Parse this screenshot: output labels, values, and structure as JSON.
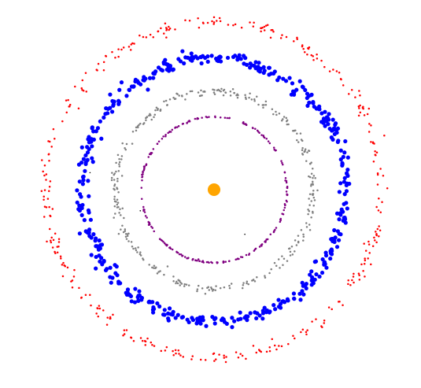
{
  "chart_data": {
    "type": "scatter",
    "title": "",
    "xlabel": "",
    "ylabel": "",
    "axes_visible": false,
    "grid": false,
    "legend": "none",
    "aspect": "equal",
    "center": {
      "x": 0,
      "y": 0
    },
    "central_body": {
      "color": "#ffa500",
      "x": 0,
      "y": 0,
      "radius": 0.78
    },
    "series": [
      {
        "shape": "ring",
        "radius": 9.0,
        "radial_spread": 0.08,
        "point_size": "small",
        "count": 220,
        "color": "#800080"
      },
      {
        "shape": "ring",
        "radius": 12.2,
        "radial_spread": 0.45,
        "point_size": "small",
        "count": 320,
        "color": "#808080"
      },
      {
        "shape": "ring",
        "radius": 16.3,
        "radial_spread": 0.65,
        "point_size": "large",
        "count": 460,
        "color": "#0000ff"
      },
      {
        "shape": "ring",
        "radius": 20.7,
        "radial_spread": 0.65,
        "point_size": "small",
        "count": 340,
        "color": "#ff0000"
      }
    ],
    "stray_points": [
      {
        "x": -9.1,
        "y": -2.6,
        "color": "#000000"
      },
      {
        "x": 3.8,
        "y": -5.5,
        "color": "#000000"
      },
      {
        "x": -15.3,
        "y": 2.1,
        "color": "#000000"
      }
    ]
  }
}
